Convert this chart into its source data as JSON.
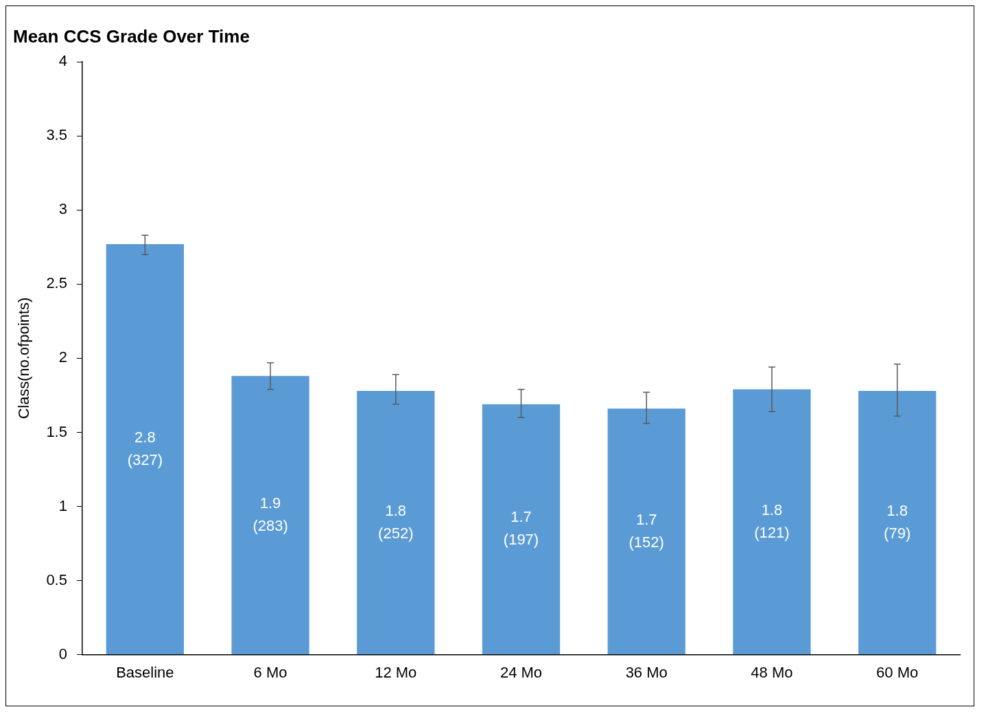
{
  "chart_data": {
    "type": "bar",
    "title": "Mean CCS Grade Over Time",
    "ylabel": "Class(no.ofpoints)",
    "categories": [
      "Baseline",
      "6 Mo",
      "12 Mo",
      "24 Mo",
      "36 Mo",
      "48 Mo",
      "60 Mo"
    ],
    "values": [
      2.77,
      1.88,
      1.78,
      1.69,
      1.66,
      1.79,
      1.78
    ],
    "errors": [
      [
        2.7,
        2.83
      ],
      [
        1.79,
        1.97
      ],
      [
        1.69,
        1.89
      ],
      [
        1.6,
        1.79
      ],
      [
        1.56,
        1.77
      ],
      [
        1.64,
        1.94
      ],
      [
        1.61,
        1.96
      ]
    ],
    "value_labels": [
      "2.8\n(327)",
      "1.9\n(283)",
      "1.8\n(252)",
      "1.7\n(197)",
      "1.7\n(152)",
      "1.8\n(121)",
      "1.8\n(79)"
    ],
    "color": "#5b9bd5",
    "ylim": [
      0,
      4
    ],
    "yticks": [
      0,
      0.5,
      1,
      1.5,
      2,
      2.5,
      3,
      3.5,
      4
    ],
    "grid": false,
    "legend": false
  }
}
